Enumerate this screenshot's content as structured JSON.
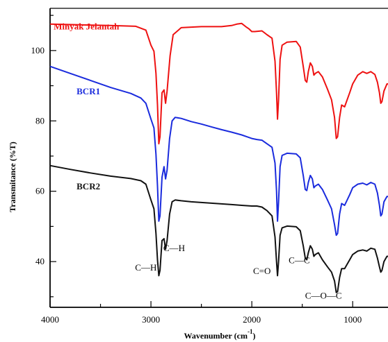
{
  "chart_data": {
    "type": "line",
    "title": "",
    "xlabel": "Wavenumber (cm",
    "xlabel_sup": "-1",
    "xlabel_close": ")",
    "ylabel": "Transmitance (%T)",
    "xlim": [
      4000,
      650
    ],
    "ylim": [
      27,
      112
    ],
    "x_reversed": true,
    "grid": false,
    "x_ticks": [
      4000,
      3000,
      2000,
      1000
    ],
    "x_tick_labels": [
      "4000",
      "3000",
      "2000",
      "1000"
    ],
    "y_ticks": [
      40,
      60,
      80,
      100
    ],
    "y_tick_labels": [
      "40",
      "60",
      "80",
      "100"
    ],
    "series": [
      {
        "name": "Minyak Jelantah",
        "color": "#ee1111",
        "points": [
          [
            4000,
            107.5
          ],
          [
            3700,
            107.3
          ],
          [
            3400,
            107.1
          ],
          [
            3150,
            106.9
          ],
          [
            3050,
            105.8
          ],
          [
            3000,
            101.5
          ],
          [
            2970,
            99.8
          ],
          [
            2950,
            93.5
          ],
          [
            2935,
            84.5
          ],
          [
            2922,
            73.5
          ],
          [
            2910,
            75.5
          ],
          [
            2890,
            88.0
          ],
          [
            2870,
            88.8
          ],
          [
            2855,
            85.0
          ],
          [
            2840,
            88.5
          ],
          [
            2810,
            98.5
          ],
          [
            2780,
            104.5
          ],
          [
            2700,
            106.5
          ],
          [
            2500,
            106.8
          ],
          [
            2300,
            106.8
          ],
          [
            2200,
            107.1
          ],
          [
            2150,
            107.5
          ],
          [
            2100,
            107.7
          ],
          [
            2060,
            106.8
          ],
          [
            2030,
            106.2
          ],
          [
            2000,
            105.4
          ],
          [
            1970,
            105.4
          ],
          [
            1900,
            105.6
          ],
          [
            1850,
            104.5
          ],
          [
            1800,
            103.5
          ],
          [
            1770,
            97.0
          ],
          [
            1755,
            88.0
          ],
          [
            1745,
            80.5
          ],
          [
            1735,
            86.0
          ],
          [
            1720,
            97.5
          ],
          [
            1700,
            101.5
          ],
          [
            1650,
            102.4
          ],
          [
            1560,
            102.6
          ],
          [
            1520,
            101.0
          ],
          [
            1490,
            95.5
          ],
          [
            1470,
            91.5
          ],
          [
            1455,
            91.0
          ],
          [
            1440,
            94.0
          ],
          [
            1420,
            96.5
          ],
          [
            1400,
            95.5
          ],
          [
            1385,
            93.0
          ],
          [
            1370,
            93.5
          ],
          [
            1340,
            94.0
          ],
          [
            1300,
            92.5
          ],
          [
            1250,
            89.0
          ],
          [
            1210,
            86.0
          ],
          [
            1180,
            81.0
          ],
          [
            1163,
            75.0
          ],
          [
            1150,
            75.5
          ],
          [
            1130,
            81.0
          ],
          [
            1110,
            84.5
          ],
          [
            1080,
            84.0
          ],
          [
            1030,
            88.0
          ],
          [
            1000,
            90.5
          ],
          [
            950,
            93.0
          ],
          [
            900,
            94.0
          ],
          [
            860,
            93.5
          ],
          [
            820,
            94.0
          ],
          [
            780,
            93.2
          ],
          [
            755,
            91.0
          ],
          [
            735,
            88.0
          ],
          [
            722,
            85.0
          ],
          [
            710,
            85.5
          ],
          [
            690,
            88.5
          ],
          [
            660,
            90.5
          ],
          [
            650,
            90.5
          ]
        ]
      },
      {
        "name": "BCR1",
        "color": "#1a2bdd",
        "points": [
          [
            4000,
            95.5
          ],
          [
            3800,
            93.5
          ],
          [
            3600,
            91.5
          ],
          [
            3400,
            89.5
          ],
          [
            3200,
            87.8
          ],
          [
            3100,
            86.5
          ],
          [
            3050,
            85.0
          ],
          [
            3000,
            80.5
          ],
          [
            2970,
            78.0
          ],
          [
            2950,
            70.5
          ],
          [
            2935,
            61.5
          ],
          [
            2922,
            51.5
          ],
          [
            2910,
            53.0
          ],
          [
            2890,
            64.0
          ],
          [
            2870,
            67.0
          ],
          [
            2855,
            63.5
          ],
          [
            2840,
            66.0
          ],
          [
            2815,
            75.0
          ],
          [
            2790,
            80.0
          ],
          [
            2760,
            81.0
          ],
          [
            2700,
            80.7
          ],
          [
            2600,
            79.8
          ],
          [
            2500,
            79.1
          ],
          [
            2400,
            78.3
          ],
          [
            2300,
            77.5
          ],
          [
            2200,
            76.8
          ],
          [
            2100,
            76.0
          ],
          [
            2050,
            75.5
          ],
          [
            2000,
            75.0
          ],
          [
            1950,
            74.7
          ],
          [
            1900,
            74.5
          ],
          [
            1850,
            73.5
          ],
          [
            1800,
            72.5
          ],
          [
            1770,
            68.0
          ],
          [
            1755,
            60.0
          ],
          [
            1745,
            51.5
          ],
          [
            1735,
            57.0
          ],
          [
            1720,
            67.0
          ],
          [
            1700,
            70.2
          ],
          [
            1650,
            70.8
          ],
          [
            1560,
            70.6
          ],
          [
            1520,
            69.5
          ],
          [
            1490,
            64.5
          ],
          [
            1470,
            60.5
          ],
          [
            1455,
            60.2
          ],
          [
            1440,
            62.5
          ],
          [
            1420,
            64.5
          ],
          [
            1400,
            63.5
          ],
          [
            1385,
            61.0
          ],
          [
            1370,
            61.5
          ],
          [
            1340,
            62.0
          ],
          [
            1300,
            60.5
          ],
          [
            1250,
            57.5
          ],
          [
            1210,
            55.0
          ],
          [
            1180,
            50.5
          ],
          [
            1163,
            47.5
          ],
          [
            1150,
            48.0
          ],
          [
            1130,
            53.5
          ],
          [
            1110,
            56.5
          ],
          [
            1080,
            56.0
          ],
          [
            1030,
            59.0
          ],
          [
            1000,
            61.0
          ],
          [
            950,
            62.0
          ],
          [
            900,
            62.3
          ],
          [
            860,
            61.8
          ],
          [
            820,
            62.5
          ],
          [
            780,
            62.0
          ],
          [
            755,
            59.5
          ],
          [
            735,
            56.0
          ],
          [
            722,
            53.0
          ],
          [
            710,
            53.5
          ],
          [
            690,
            57.0
          ],
          [
            660,
            58.5
          ],
          [
            650,
            58.5
          ]
        ]
      },
      {
        "name": "BCR2",
        "color": "#111111",
        "points": [
          [
            4000,
            67.3
          ],
          [
            3800,
            66.2
          ],
          [
            3600,
            65.2
          ],
          [
            3400,
            64.3
          ],
          [
            3200,
            63.6
          ],
          [
            3100,
            63.0
          ],
          [
            3050,
            62.0
          ],
          [
            3000,
            57.5
          ],
          [
            2970,
            55.0
          ],
          [
            2950,
            48.0
          ],
          [
            2935,
            40.5
          ],
          [
            2922,
            36.0
          ],
          [
            2910,
            37.5
          ],
          [
            2890,
            46.0
          ],
          [
            2870,
            46.5
          ],
          [
            2855,
            43.5
          ],
          [
            2840,
            46.0
          ],
          [
            2815,
            53.5
          ],
          [
            2790,
            57.0
          ],
          [
            2760,
            57.5
          ],
          [
            2700,
            57.3
          ],
          [
            2600,
            57.0
          ],
          [
            2500,
            56.8
          ],
          [
            2400,
            56.6
          ],
          [
            2300,
            56.4
          ],
          [
            2200,
            56.2
          ],
          [
            2100,
            56.0
          ],
          [
            2000,
            55.8
          ],
          [
            1950,
            55.8
          ],
          [
            1900,
            55.5
          ],
          [
            1850,
            54.5
          ],
          [
            1800,
            53.0
          ],
          [
            1770,
            47.0
          ],
          [
            1755,
            40.0
          ],
          [
            1745,
            36.0
          ],
          [
            1735,
            40.0
          ],
          [
            1720,
            47.5
          ],
          [
            1700,
            49.6
          ],
          [
            1650,
            50.1
          ],
          [
            1560,
            49.9
          ],
          [
            1520,
            48.8
          ],
          [
            1490,
            44.5
          ],
          [
            1470,
            41.0
          ],
          [
            1455,
            40.5
          ],
          [
            1440,
            42.5
          ],
          [
            1420,
            44.5
          ],
          [
            1400,
            43.5
          ],
          [
            1385,
            41.5
          ],
          [
            1370,
            42.0
          ],
          [
            1340,
            42.5
          ],
          [
            1300,
            40.5
          ],
          [
            1250,
            38.5
          ],
          [
            1210,
            37.0
          ],
          [
            1180,
            34.5
          ],
          [
            1163,
            31.2
          ],
          [
            1150,
            31.5
          ],
          [
            1130,
            35.5
          ],
          [
            1110,
            38.0
          ],
          [
            1080,
            38.0
          ],
          [
            1030,
            40.5
          ],
          [
            1000,
            42.0
          ],
          [
            950,
            43.0
          ],
          [
            900,
            43.3
          ],
          [
            860,
            43.0
          ],
          [
            820,
            43.8
          ],
          [
            780,
            43.5
          ],
          [
            755,
            41.0
          ],
          [
            735,
            38.5
          ],
          [
            722,
            37.0
          ],
          [
            710,
            37.5
          ],
          [
            690,
            40.0
          ],
          [
            660,
            41.5
          ],
          [
            650,
            41.5
          ]
        ]
      }
    ],
    "annotations": [
      {
        "text": "C—H",
        "x": 3050,
        "y": 37.5
      },
      {
        "text": "C—H",
        "x": 2770,
        "y": 43.0
      },
      {
        "text": "C=O",
        "x": 1900,
        "y": 36.5
      },
      {
        "text": "C—C",
        "x": 1530,
        "y": 39.5
      },
      {
        "text": "C—O—C",
        "x": 1290,
        "y": 29.5
      }
    ]
  }
}
